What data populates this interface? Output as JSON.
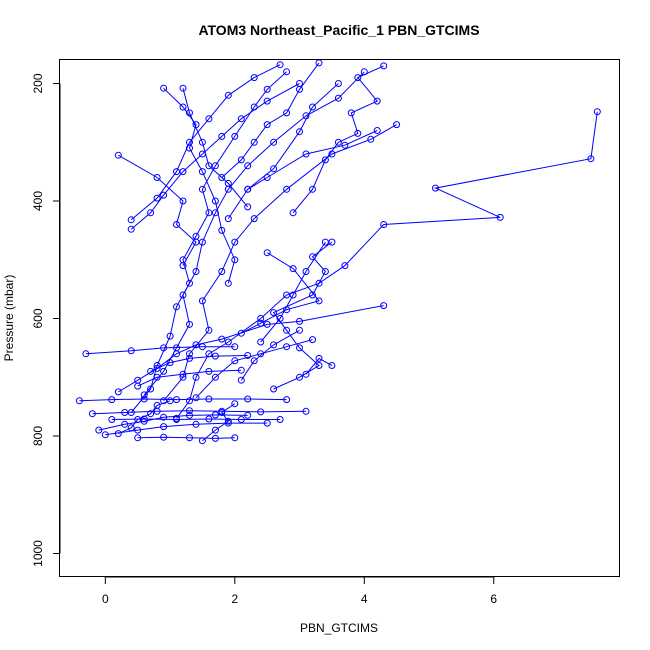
{
  "chart_data": {
    "type": "line",
    "title": "ATOM3 Northeast_Pacific_1 PBN_GTCIMS",
    "xlabel": "PBN_GTCIMS",
    "ylabel": "Pressure (mbar)",
    "xlim": [
      -0.7,
      7.95
    ],
    "ylim": [
      1040,
      160
    ],
    "y_reversed": true,
    "x_ticks": [
      0,
      2,
      4,
      6
    ],
    "y_ticks": [
      200,
      400,
      600,
      800,
      1000
    ],
    "series_color": "#0000ff",
    "grid": false,
    "legend": "none",
    "series": [
      {
        "points": [
          [
            -0.4,
            740
          ],
          [
            0.1,
            738
          ],
          [
            0.6,
            737
          ],
          [
            1.1,
            738
          ],
          [
            1.6,
            737
          ],
          [
            2.2,
            737
          ],
          [
            2.8,
            738
          ]
        ]
      },
      {
        "points": [
          [
            -0.2,
            762
          ],
          [
            0.3,
            760
          ],
          [
            0.8,
            758
          ],
          [
            1.3,
            757
          ],
          [
            1.8,
            758
          ],
          [
            2.4,
            759
          ],
          [
            3.1,
            758
          ]
        ]
      },
      {
        "points": [
          [
            0.1,
            772
          ],
          [
            0.6,
            771
          ],
          [
            1.1,
            772
          ],
          [
            1.6,
            771
          ],
          [
            2.1,
            772
          ],
          [
            2.7,
            772
          ]
        ]
      },
      {
        "points": [
          [
            0.5,
            803
          ],
          [
            0.9,
            802
          ],
          [
            1.3,
            803
          ],
          [
            1.7,
            804
          ],
          [
            2.0,
            803
          ]
        ]
      },
      {
        "points": [
          [
            0.2,
            796
          ],
          [
            0.4,
            786
          ],
          [
            0.5,
            772
          ],
          [
            0.7,
            762
          ],
          [
            0.8,
            748
          ],
          [
            1.0,
            740
          ]
        ]
      },
      {
        "points": [
          [
            0.2,
            725
          ],
          [
            0.5,
            705
          ],
          [
            0.8,
            685
          ],
          [
            1.1,
            660
          ],
          [
            1.4,
            645
          ],
          [
            1.8,
            635
          ],
          [
            2.5,
            610
          ],
          [
            3.0,
            605
          ],
          [
            4.3,
            578
          ]
        ]
      },
      {
        "points": [
          [
            -0.3,
            660
          ],
          [
            0.4,
            655
          ],
          [
            0.9,
            650
          ],
          [
            1.5,
            648
          ],
          [
            2.0,
            648
          ]
        ]
      },
      {
        "points": [
          [
            0.9,
            740
          ],
          [
            1.2,
            700
          ],
          [
            1.3,
            660
          ],
          [
            1.6,
            620
          ],
          [
            1.5,
            570
          ],
          [
            1.8,
            520
          ],
          [
            2.0,
            470
          ],
          [
            2.3,
            430
          ],
          [
            2.8,
            380
          ],
          [
            3.5,
            320
          ],
          [
            4.1,
            295
          ],
          [
            4.5,
            270
          ]
        ]
      },
      {
        "points": [
          [
            0.6,
            730
          ],
          [
            0.9,
            690
          ],
          [
            1.1,
            650
          ],
          [
            1.3,
            610
          ],
          [
            1.2,
            560
          ],
          [
            1.4,
            520
          ],
          [
            1.5,
            470
          ],
          [
            1.7,
            420
          ],
          [
            1.9,
            380
          ],
          [
            2.2,
            340
          ],
          [
            2.6,
            300
          ],
          [
            3.1,
            255
          ],
          [
            3.6,
            225
          ],
          [
            4.0,
            180
          ]
        ]
      },
      {
        "points": [
          [
            0.4,
            760
          ],
          [
            0.7,
            720
          ],
          [
            0.8,
            680
          ],
          [
            1.0,
            630
          ],
          [
            1.1,
            580
          ],
          [
            1.3,
            540
          ],
          [
            1.2,
            500
          ],
          [
            1.4,
            460
          ],
          [
            1.6,
            420
          ],
          [
            1.5,
            380
          ],
          [
            1.7,
            340
          ],
          [
            2.0,
            290
          ],
          [
            2.3,
            240
          ],
          [
            2.5,
            210
          ],
          [
            2.8,
            180
          ]
        ]
      },
      {
        "points": [
          [
            1.1,
            770
          ],
          [
            1.3,
            740
          ],
          [
            1.4,
            700
          ],
          [
            1.6,
            660
          ],
          [
            1.9,
            640
          ],
          [
            2.4,
            600
          ],
          [
            2.8,
            560
          ],
          [
            3.3,
            540
          ],
          [
            3.7,
            510
          ],
          [
            4.3,
            440
          ],
          [
            6.1,
            428
          ],
          [
            5.1,
            378
          ],
          [
            7.5,
            328
          ],
          [
            7.6,
            248
          ]
        ]
      },
      {
        "points": [
          [
            2.6,
            720
          ],
          [
            3.0,
            700
          ],
          [
            3.3,
            680
          ],
          [
            3.0,
            650
          ],
          [
            2.8,
            620
          ],
          [
            2.6,
            590
          ],
          [
            3.2,
            560
          ],
          [
            3.4,
            520
          ],
          [
            3.2,
            495
          ],
          [
            3.5,
            470
          ]
        ]
      },
      {
        "points": [
          [
            2.4,
            640
          ],
          [
            2.7,
            600
          ],
          [
            2.9,
            560
          ],
          [
            3.1,
            520
          ],
          [
            3.4,
            470
          ]
        ]
      },
      {
        "points": [
          [
            2.1,
            705
          ],
          [
            2.3,
            672
          ],
          [
            2.6,
            645
          ],
          [
            3.0,
            620
          ]
        ]
      },
      {
        "points": [
          [
            3.1,
            695
          ],
          [
            3.3,
            668
          ],
          [
            3.5,
            680
          ]
        ]
      },
      {
        "points": [
          [
            0.2,
            322
          ],
          [
            0.8,
            360
          ],
          [
            1.2,
            400
          ],
          [
            1.1,
            440
          ],
          [
            1.4,
            470
          ],
          [
            1.2,
            510
          ]
        ]
      },
      {
        "points": [
          [
            0.4,
            432
          ],
          [
            0.8,
            395
          ],
          [
            1.1,
            350
          ],
          [
            1.3,
            300
          ],
          [
            1.6,
            260
          ],
          [
            1.9,
            220
          ],
          [
            2.3,
            190
          ],
          [
            2.7,
            168
          ]
        ]
      },
      {
        "points": [
          [
            0.4,
            448
          ],
          [
            0.7,
            420
          ],
          [
            0.9,
            390
          ],
          [
            1.2,
            350
          ],
          [
            1.5,
            320
          ],
          [
            1.8,
            290
          ],
          [
            2.1,
            260
          ],
          [
            2.5,
            230
          ],
          [
            3.0,
            200
          ]
        ]
      },
      {
        "points": [
          [
            0.9,
            208
          ],
          [
            1.2,
            240
          ],
          [
            1.4,
            270
          ],
          [
            1.3,
            310
          ],
          [
            1.5,
            350
          ],
          [
            1.7,
            400
          ],
          [
            1.8,
            450
          ],
          [
            2.0,
            500
          ],
          [
            1.9,
            540
          ]
        ]
      },
      {
        "points": [
          [
            1.2,
            208
          ],
          [
            1.3,
            250
          ],
          [
            1.5,
            300
          ],
          [
            1.6,
            340
          ],
          [
            1.9,
            370
          ],
          [
            2.2,
            410
          ]
        ]
      },
      {
        "points": [
          [
            2.9,
            420
          ],
          [
            3.2,
            380
          ],
          [
            3.4,
            330
          ],
          [
            3.6,
            300
          ],
          [
            3.9,
            285
          ],
          [
            3.8,
            250
          ],
          [
            4.2,
            230
          ],
          [
            3.9,
            190
          ],
          [
            4.3,
            170
          ]
        ]
      },
      {
        "points": [
          [
            2.5,
            488
          ],
          [
            2.9,
            515
          ],
          [
            3.3,
            570
          ],
          [
            2.8,
            585
          ],
          [
            2.4,
            608
          ],
          [
            2.1,
            625
          ]
        ]
      },
      {
        "points": [
          [
            3.6,
            200
          ],
          [
            3.2,
            240
          ],
          [
            3.0,
            282
          ],
          [
            2.6,
            345
          ],
          [
            2.2,
            380
          ],
          [
            1.9,
            430
          ]
        ]
      },
      {
        "points": [
          [
            3.3,
            165
          ],
          [
            3.0,
            210
          ],
          [
            2.8,
            250
          ],
          [
            2.5,
            270
          ],
          [
            2.3,
            300
          ],
          [
            2.1,
            330
          ],
          [
            1.8,
            360
          ]
        ]
      },
      {
        "points": [
          [
            2.2,
            380
          ],
          [
            2.5,
            360
          ],
          [
            3.1,
            320
          ],
          [
            3.7,
            305
          ],
          [
            4.2,
            280
          ]
        ]
      },
      {
        "points": [
          [
            1.5,
            808
          ],
          [
            1.7,
            790
          ],
          [
            1.9,
            775
          ],
          [
            1.8,
            760
          ],
          [
            2.0,
            745
          ]
        ]
      },
      {
        "points": [
          [
            -0.1,
            790
          ],
          [
            0.3,
            780
          ],
          [
            0.6,
            775
          ],
          [
            0.9,
            768
          ],
          [
            1.3,
            765
          ],
          [
            1.7,
            764
          ],
          [
            2.2,
            765
          ]
        ]
      },
      {
        "points": [
          [
            0.0,
            798
          ],
          [
            0.5,
            790
          ],
          [
            0.9,
            784
          ],
          [
            1.4,
            780
          ],
          [
            1.9,
            778
          ],
          [
            2.5,
            778
          ]
        ]
      },
      {
        "points": [
          [
            1.4,
            735
          ],
          [
            1.7,
            700
          ],
          [
            2.0,
            672
          ],
          [
            2.4,
            660
          ],
          [
            2.8,
            648
          ],
          [
            3.2,
            636
          ]
        ]
      },
      {
        "points": [
          [
            0.7,
            690
          ],
          [
            1.0,
            675
          ],
          [
            1.3,
            668
          ],
          [
            1.7,
            664
          ],
          [
            2.2,
            663
          ]
        ]
      },
      {
        "points": [
          [
            0.5,
            715
          ],
          [
            0.8,
            700
          ],
          [
            1.2,
            695
          ],
          [
            1.6,
            690
          ],
          [
            2.1,
            688
          ]
        ]
      }
    ]
  }
}
